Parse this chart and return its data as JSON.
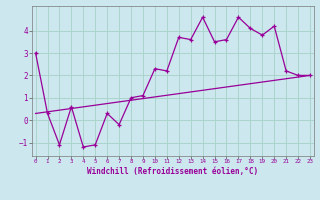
{
  "xlabel": "Windchill (Refroidissement éolien,°C)",
  "bg_color": "#cce8ee",
  "grid_color": "#aad4cc",
  "line_color": "#990099",
  "x_data": [
    0,
    1,
    2,
    3,
    4,
    5,
    6,
    7,
    8,
    9,
    10,
    11,
    12,
    13,
    14,
    15,
    16,
    17,
    18,
    19,
    20,
    21,
    22,
    23
  ],
  "y_data": [
    3.0,
    0.3,
    -1.1,
    0.6,
    -1.2,
    -1.1,
    0.3,
    -0.2,
    1.0,
    1.1,
    2.3,
    2.2,
    3.7,
    3.6,
    4.6,
    3.5,
    3.6,
    4.6,
    4.1,
    3.8,
    4.2,
    2.2,
    2.0,
    2.0
  ],
  "trend_x": [
    0,
    23
  ],
  "trend_y": [
    0.3,
    2.0
  ],
  "ylim": [
    -1.6,
    5.1
  ],
  "xlim": [
    -0.3,
    23.3
  ],
  "yticks": [
    -1,
    0,
    1,
    2,
    3,
    4
  ],
  "xticks": [
    0,
    1,
    2,
    3,
    4,
    5,
    6,
    7,
    8,
    9,
    10,
    11,
    12,
    13,
    14,
    15,
    16,
    17,
    18,
    19,
    20,
    21,
    22,
    23
  ]
}
